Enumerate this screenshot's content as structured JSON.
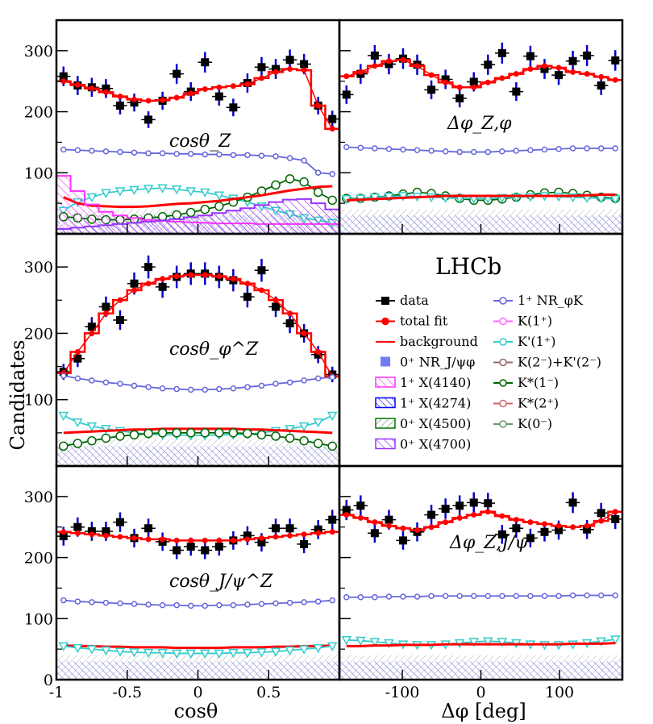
{
  "figure": {
    "y_axis_label": "Candidates",
    "x_axis_label_left": "cosθ",
    "x_axis_label_right": "Δφ [deg]",
    "experiment_label": "LHCb"
  },
  "legend": [
    {
      "label": "data",
      "color": "#000000",
      "marker": "square"
    },
    {
      "label": "total fit",
      "color": "#ff0000",
      "marker": "dot-line"
    },
    {
      "label": "background",
      "color": "#ff0000",
      "marker": "line"
    },
    {
      "label": "0⁺ NR_J/ψφ",
      "color": "#3344ee",
      "marker": "box"
    },
    {
      "label": "1⁺ X(4140)",
      "color": "#ff33ff",
      "marker": "hatch"
    },
    {
      "label": "1⁺ X(4274)",
      "color": "#0000ff",
      "marker": "hatch"
    },
    {
      "label": "0⁺ X(4500)",
      "color": "#007700",
      "marker": "hatch"
    },
    {
      "label": "0⁺ X(4700)",
      "color": "#9933ff",
      "marker": "hatch"
    },
    {
      "label": "1⁺ NR_φK",
      "color": "#6666dd",
      "marker": "open-circle"
    },
    {
      "label": "K(1⁺)",
      "color": "#ff66ff",
      "marker": "diamond"
    },
    {
      "label": "K'(1⁺)",
      "color": "#33cccc",
      "marker": "triangle"
    },
    {
      "label": "K(2⁻)+K'(2⁻)",
      "color": "#996666",
      "marker": "square-open"
    },
    {
      "label": "K*(1⁻)",
      "color": "#006600",
      "marker": "open-circle"
    },
    {
      "label": "K*(2⁺)",
      "color": "#cc6666",
      "marker": "star"
    },
    {
      "label": "K(0⁻)",
      "color": "#669966",
      "marker": "cross"
    }
  ],
  "chart_data": [
    {
      "type": "line",
      "title": "cosθ_Z",
      "xlabel": "cosθ",
      "ylabel": "Candidates",
      "xlim": [
        -1,
        1
      ],
      "ylim": [
        0,
        350
      ],
      "x": [
        -0.95,
        -0.85,
        -0.75,
        -0.65,
        -0.55,
        -0.45,
        -0.35,
        -0.25,
        -0.15,
        -0.05,
        0.05,
        0.15,
        0.25,
        0.35,
        0.45,
        0.55,
        0.65,
        0.75,
        0.85,
        0.95
      ],
      "series": [
        {
          "name": "data",
          "values": [
            258,
            243,
            240,
            238,
            210,
            215,
            187,
            218,
            262,
            233,
            281,
            225,
            207,
            247,
            273,
            270,
            285,
            278,
            210,
            188
          ]
        },
        {
          "name": "total fit",
          "values": [
            250,
            244,
            238,
            232,
            225,
            220,
            218,
            219,
            223,
            230,
            237,
            240,
            242,
            245,
            255,
            265,
            270,
            268,
            210,
            172
          ]
        },
        {
          "name": "1⁺ NR_φK",
          "values": [
            138,
            137,
            136,
            135,
            134,
            133,
            132,
            132,
            131,
            131,
            130,
            130,
            129,
            129,
            128,
            127,
            124,
            120,
            100,
            98
          ]
        },
        {
          "name": "K'(1⁺)",
          "values": [
            38,
            52,
            60,
            67,
            70,
            72,
            74,
            75,
            73,
            70,
            68,
            63,
            58,
            52,
            45,
            38,
            32,
            26,
            22,
            18
          ]
        },
        {
          "name": "K*(1⁻)",
          "values": [
            28,
            26,
            24,
            23,
            23,
            24,
            26,
            28,
            31,
            35,
            40,
            45,
            52,
            60,
            70,
            80,
            90,
            85,
            68,
            55
          ]
        },
        {
          "name": "background",
          "values": [
            60,
            50,
            46,
            45,
            44,
            44,
            45,
            47,
            49,
            50,
            52,
            54,
            57,
            60,
            63,
            67,
            71,
            74,
            77,
            78
          ]
        },
        {
          "name": "1⁺ X(4140)",
          "values": [
            95,
            70,
            48,
            36,
            30,
            26,
            23,
            21,
            20,
            19,
            18,
            17,
            17,
            17,
            16,
            16,
            16,
            16,
            16,
            16
          ]
        },
        {
          "name": "0⁺ X(4700)",
          "values": [
            8,
            10,
            12,
            14,
            16,
            18,
            20,
            22,
            24,
            27,
            30,
            34,
            38,
            42,
            47,
            52,
            56,
            57,
            50,
            40
          ]
        }
      ]
    },
    {
      "type": "line",
      "title": "Δφ_Z,φ",
      "xlabel": "Δφ [deg]",
      "ylabel": "Candidates",
      "xlim": [
        -180,
        180
      ],
      "ylim": [
        0,
        350
      ],
      "x": [
        -171,
        -153,
        -135,
        -117,
        -99,
        -81,
        -63,
        -45,
        -27,
        -9,
        9,
        27,
        45,
        63,
        81,
        99,
        117,
        135,
        153,
        171
      ],
      "series": [
        {
          "name": "data",
          "values": [
            228,
            262,
            292,
            278,
            287,
            277,
            236,
            253,
            222,
            249,
            277,
            296,
            233,
            291,
            270,
            260,
            283,
            292,
            243,
            284
          ]
        },
        {
          "name": "total fit",
          "values": [
            258,
            265,
            275,
            283,
            285,
            275,
            260,
            248,
            240,
            240,
            248,
            255,
            262,
            270,
            275,
            272,
            265,
            262,
            257,
            252
          ]
        },
        {
          "name": "1⁺ NR_φK",
          "values": [
            142,
            141,
            140,
            139,
            138,
            137,
            136,
            135,
            134,
            134,
            134,
            135,
            136,
            137,
            138,
            139,
            140,
            140,
            140,
            140
          ]
        },
        {
          "name": "K*(1⁻)",
          "values": [
            58,
            58,
            60,
            62,
            65,
            68,
            66,
            62,
            58,
            55,
            55,
            57,
            60,
            64,
            67,
            68,
            66,
            63,
            60,
            58
          ]
        },
        {
          "name": "K'(1⁺)",
          "values": [
            57,
            58,
            60,
            61,
            62,
            61,
            60,
            59,
            58,
            58,
            58,
            59,
            60,
            61,
            62,
            61,
            60,
            59,
            58,
            57
          ]
        },
        {
          "name": "background",
          "values": [
            55,
            56,
            57,
            58,
            59,
            60,
            61,
            62,
            62,
            62,
            62,
            62,
            62,
            62,
            62,
            62,
            62,
            63,
            64,
            64
          ]
        }
      ]
    },
    {
      "type": "line",
      "title": "cosθ_φ^Z",
      "xlabel": "cosθ",
      "ylabel": "Candidates",
      "xlim": [
        -1,
        1
      ],
      "ylim": [
        0,
        350
      ],
      "x": [
        -0.95,
        -0.85,
        -0.75,
        -0.65,
        -0.55,
        -0.45,
        -0.35,
        -0.25,
        -0.15,
        -0.05,
        0.05,
        0.15,
        0.25,
        0.35,
        0.45,
        0.55,
        0.65,
        0.75,
        0.85,
        0.95
      ],
      "series": [
        {
          "name": "data",
          "values": [
            142,
            162,
            210,
            240,
            220,
            275,
            300,
            270,
            285,
            290,
            290,
            285,
            280,
            255,
            295,
            240,
            215,
            200,
            168,
            138
          ]
        },
        {
          "name": "total fit",
          "values": [
            140,
            172,
            200,
            230,
            250,
            265,
            275,
            282,
            286,
            288,
            288,
            286,
            282,
            275,
            265,
            250,
            230,
            200,
            172,
            135
          ]
        },
        {
          "name": "1⁺ NR_φK",
          "values": [
            136,
            132,
            129,
            126,
            124,
            121,
            119,
            117,
            116,
            115,
            115,
            116,
            117,
            119,
            121,
            124,
            126,
            129,
            132,
            134
          ]
        },
        {
          "name": "K'(1⁺)",
          "values": [
            76,
            66,
            60,
            56,
            53,
            50,
            48,
            47,
            47,
            46,
            46,
            47,
            47,
            48,
            50,
            53,
            56,
            60,
            66,
            76
          ]
        },
        {
          "name": "background",
          "values": [
            50,
            51,
            52,
            53,
            54,
            55,
            55,
            56,
            56,
            56,
            56,
            56,
            56,
            55,
            55,
            54,
            53,
            52,
            51,
            50
          ]
        },
        {
          "name": "K*(1⁻)",
          "values": [
            30,
            34,
            38,
            42,
            45,
            47,
            49,
            50,
            50,
            50,
            50,
            50,
            50,
            49,
            47,
            45,
            42,
            38,
            34,
            30
          ]
        }
      ]
    },
    {
      "type": "line",
      "title": "cosθ_J/ψ^Z",
      "xlabel": "cosθ",
      "ylabel": "Candidates",
      "xlim": [
        -1,
        1
      ],
      "ylim": [
        0,
        350
      ],
      "x": [
        -0.95,
        -0.85,
        -0.75,
        -0.65,
        -0.55,
        -0.45,
        -0.35,
        -0.25,
        -0.15,
        -0.05,
        0.05,
        0.15,
        0.25,
        0.35,
        0.45,
        0.55,
        0.65,
        0.75,
        0.85,
        0.95
      ],
      "series": [
        {
          "name": "data",
          "values": [
            235,
            250,
            243,
            243,
            258,
            232,
            248,
            226,
            212,
            218,
            212,
            218,
            228,
            236,
            225,
            248,
            248,
            222,
            246,
            262
          ]
        },
        {
          "name": "total fit",
          "values": [
            242,
            240,
            238,
            236,
            234,
            232,
            230,
            230,
            228,
            228,
            228,
            228,
            228,
            230,
            232,
            234,
            236,
            238,
            240,
            242
          ]
        },
        {
          "name": "1⁺ NR_φK",
          "values": [
            130,
            128,
            127,
            126,
            125,
            124,
            123,
            122,
            122,
            121,
            121,
            122,
            122,
            123,
            124,
            125,
            126,
            127,
            128,
            130
          ]
        },
        {
          "name": "background",
          "values": [
            56,
            55,
            55,
            54,
            54,
            53,
            53,
            53,
            52,
            52,
            52,
            52,
            53,
            53,
            53,
            54,
            54,
            55,
            55,
            56
          ]
        },
        {
          "name": "K'(1⁺)",
          "values": [
            55,
            52,
            50,
            48,
            46,
            45,
            44,
            44,
            43,
            43,
            43,
            43,
            44,
            44,
            45,
            46,
            48,
            50,
            52,
            55
          ]
        }
      ]
    },
    {
      "type": "line",
      "title": "Δφ_Z,J/ψ",
      "xlabel": "Δφ [deg]",
      "ylabel": "Candidates",
      "xlim": [
        -180,
        180
      ],
      "ylim": [
        0,
        350
      ],
      "x": [
        -171,
        -153,
        -135,
        -117,
        -99,
        -81,
        -63,
        -45,
        -27,
        -9,
        9,
        27,
        45,
        63,
        81,
        99,
        117,
        135,
        153,
        171
      ],
      "series": [
        {
          "name": "data",
          "values": [
            278,
            285,
            240,
            262,
            228,
            242,
            270,
            280,
            285,
            290,
            289,
            238,
            248,
            232,
            242,
            245,
            290,
            246,
            273,
            263
          ]
        },
        {
          "name": "total fit",
          "values": [
            270,
            265,
            258,
            252,
            248,
            245,
            250,
            258,
            265,
            270,
            275,
            268,
            262,
            258,
            255,
            252,
            250,
            252,
            260,
            275
          ]
        },
        {
          "name": "1⁺ NR_φK",
          "values": [
            135,
            135,
            135,
            136,
            136,
            136,
            137,
            137,
            137,
            137,
            137,
            137,
            137,
            137,
            137,
            137,
            138,
            138,
            138,
            138
          ]
        },
        {
          "name": "K'(1⁺)",
          "values": [
            65,
            64,
            62,
            60,
            58,
            57,
            57,
            58,
            60,
            62,
            63,
            62,
            60,
            58,
            57,
            57,
            58,
            60,
            63,
            66
          ]
        },
        {
          "name": "background",
          "values": [
            55,
            55,
            56,
            56,
            57,
            57,
            57,
            58,
            58,
            58,
            58,
            58,
            58,
            58,
            58,
            58,
            59,
            59,
            59,
            60
          ]
        }
      ]
    }
  ]
}
